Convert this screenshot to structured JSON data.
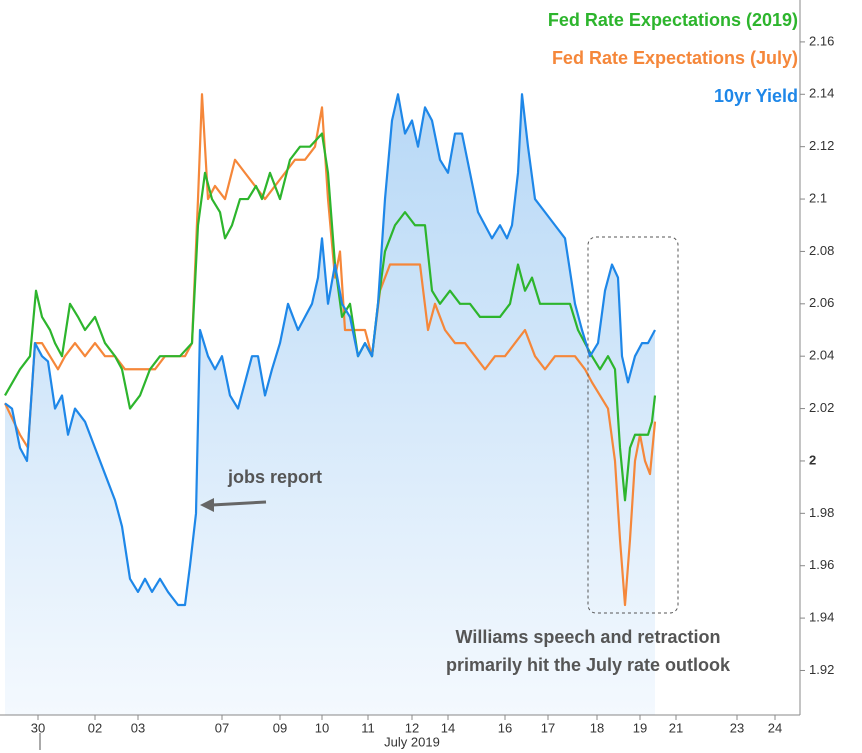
{
  "chart_data": {
    "type": "line",
    "xlabel": "July 2019",
    "xlim": [
      0,
      800
    ],
    "xticks": [
      {
        "value": 38,
        "label": "30"
      },
      {
        "value": 95,
        "label": "02"
      },
      {
        "value": 138,
        "label": "03"
      },
      {
        "value": 222,
        "label": "07"
      },
      {
        "value": 280,
        "label": "09"
      },
      {
        "value": 322,
        "label": "10"
      },
      {
        "value": 368,
        "label": "11"
      },
      {
        "value": 412,
        "label": "12"
      },
      {
        "value": 448,
        "label": "14"
      },
      {
        "value": 505,
        "label": "16"
      },
      {
        "value": 548,
        "label": "17"
      },
      {
        "value": 597,
        "label": "18"
      },
      {
        "value": 640,
        "label": "19"
      },
      {
        "value": 676,
        "label": "21"
      },
      {
        "value": 737,
        "label": "23"
      },
      {
        "value": 775,
        "label": "24"
      }
    ],
    "ylim": [
      1.903,
      2.176
    ],
    "yticks": [
      1.92,
      1.94,
      1.96,
      1.98,
      2,
      2.02,
      2.04,
      2.06,
      2.08,
      2.1,
      2.12,
      2.14,
      2.16
    ],
    "legend": "top-right",
    "series": [
      {
        "name": "Fed Rate Expectations (2019)",
        "color": "#2db52d",
        "x": [
          5,
          20,
          30,
          36,
          42,
          50,
          55,
          62,
          70,
          78,
          85,
          95,
          105,
          115,
          122,
          130,
          140,
          150,
          160,
          170,
          180,
          192,
          198,
          205,
          212,
          220,
          225,
          232,
          240,
          248,
          256,
          262,
          270,
          280,
          290,
          300,
          310,
          322,
          328,
          335,
          342,
          350,
          358,
          365,
          372,
          378,
          385,
          395,
          405,
          415,
          425,
          432,
          440,
          450,
          460,
          470,
          480,
          490,
          500,
          510,
          518,
          525,
          532,
          540,
          550,
          560,
          570,
          578,
          585,
          592,
          600,
          608,
          615,
          620,
          625,
          630,
          635,
          642,
          648,
          652,
          655
        ],
        "values": [
          2.025,
          2.035,
          2.04,
          2.065,
          2.055,
          2.05,
          2.045,
          2.04,
          2.06,
          2.055,
          2.05,
          2.055,
          2.045,
          2.04,
          2.035,
          2.02,
          2.025,
          2.035,
          2.04,
          2.04,
          2.04,
          2.045,
          2.09,
          2.11,
          2.1,
          2.095,
          2.085,
          2.09,
          2.1,
          2.1,
          2.105,
          2.1,
          2.11,
          2.1,
          2.115,
          2.12,
          2.12,
          2.125,
          2.11,
          2.075,
          2.055,
          2.06,
          2.04,
          2.045,
          2.04,
          2.06,
          2.08,
          2.09,
          2.095,
          2.09,
          2.09,
          2.065,
          2.06,
          2.065,
          2.06,
          2.06,
          2.055,
          2.055,
          2.055,
          2.06,
          2.075,
          2.065,
          2.07,
          2.06,
          2.06,
          2.06,
          2.06,
          2.05,
          2.045,
          2.04,
          2.035,
          2.04,
          2.035,
          2.005,
          1.985,
          2.005,
          2.01,
          2.01,
          2.01,
          2.015,
          2.025
        ]
      },
      {
        "name": "Fed Rate Expectations (July)",
        "color": "#f5873a",
        "x": [
          5,
          20,
          28,
          35,
          42,
          50,
          58,
          65,
          75,
          85,
          95,
          105,
          115,
          125,
          135,
          145,
          155,
          165,
          175,
          185,
          192,
          198,
          202,
          208,
          215,
          225,
          235,
          245,
          255,
          265,
          275,
          285,
          295,
          305,
          315,
          322,
          328,
          335,
          340,
          345,
          355,
          365,
          372,
          380,
          390,
          400,
          410,
          420,
          428,
          435,
          445,
          455,
          465,
          475,
          485,
          495,
          505,
          515,
          525,
          535,
          545,
          555,
          565,
          575,
          585,
          592,
          600,
          608,
          615,
          620,
          625,
          630,
          635,
          640,
          645,
          650,
          655
        ],
        "values": [
          2.022,
          2.01,
          2.005,
          2.045,
          2.045,
          2.04,
          2.035,
          2.04,
          2.045,
          2.04,
          2.045,
          2.04,
          2.04,
          2.035,
          2.035,
          2.035,
          2.035,
          2.04,
          2.04,
          2.04,
          2.045,
          2.1,
          2.14,
          2.1,
          2.105,
          2.1,
          2.115,
          2.11,
          2.105,
          2.1,
          2.105,
          2.11,
          2.115,
          2.115,
          2.12,
          2.135,
          2.1,
          2.07,
          2.08,
          2.05,
          2.05,
          2.05,
          2.04,
          2.065,
          2.075,
          2.075,
          2.075,
          2.075,
          2.05,
          2.06,
          2.05,
          2.045,
          2.045,
          2.04,
          2.035,
          2.04,
          2.04,
          2.045,
          2.05,
          2.04,
          2.035,
          2.04,
          2.04,
          2.04,
          2.035,
          2.03,
          2.025,
          2.02,
          2.0,
          1.97,
          1.945,
          1.97,
          2.0,
          2.01,
          2.0,
          1.995,
          2.015
        ]
      },
      {
        "name": "10yr Yield",
        "color": "#1e87e8",
        "x": [
          5,
          12,
          20,
          27,
          35,
          42,
          48,
          55,
          62,
          68,
          75,
          85,
          95,
          105,
          115,
          122,
          130,
          138,
          145,
          152,
          160,
          168,
          178,
          185,
          190,
          196,
          200,
          208,
          215,
          222,
          230,
          238,
          245,
          252,
          258,
          265,
          272,
          280,
          288,
          298,
          305,
          312,
          318,
          322,
          328,
          335,
          342,
          350,
          358,
          365,
          372,
          378,
          385,
          392,
          398,
          405,
          412,
          418,
          425,
          432,
          440,
          448,
          455,
          462,
          470,
          478,
          485,
          492,
          500,
          507,
          512,
          518,
          522,
          528,
          535,
          545,
          555,
          565,
          575,
          582,
          590,
          598,
          605,
          612,
          618,
          622,
          628,
          635,
          642,
          648,
          655
        ],
        "values": [
          2.022,
          2.02,
          2.005,
          2.0,
          2.045,
          2.04,
          2.038,
          2.02,
          2.025,
          2.01,
          2.02,
          2.015,
          2.005,
          1.995,
          1.985,
          1.975,
          1.955,
          1.95,
          1.955,
          1.95,
          1.955,
          1.95,
          1.945,
          1.945,
          1.96,
          1.98,
          2.05,
          2.04,
          2.035,
          2.04,
          2.025,
          2.02,
          2.03,
          2.04,
          2.04,
          2.025,
          2.035,
          2.045,
          2.06,
          2.05,
          2.055,
          2.06,
          2.07,
          2.085,
          2.06,
          2.075,
          2.06,
          2.055,
          2.04,
          2.045,
          2.04,
          2.06,
          2.1,
          2.13,
          2.14,
          2.125,
          2.13,
          2.12,
          2.135,
          2.13,
          2.115,
          2.11,
          2.125,
          2.125,
          2.11,
          2.095,
          2.09,
          2.085,
          2.09,
          2.085,
          2.09,
          2.11,
          2.14,
          2.12,
          2.1,
          2.095,
          2.09,
          2.085,
          2.06,
          2.05,
          2.04,
          2.045,
          2.065,
          2.075,
          2.07,
          2.04,
          2.03,
          2.04,
          2.045,
          2.045,
          2.05
        ],
        "area": true
      }
    ],
    "annotations": [
      "jobs report",
      "Williams speech and retraction",
      "primarily hit the July rate outlook"
    ]
  }
}
